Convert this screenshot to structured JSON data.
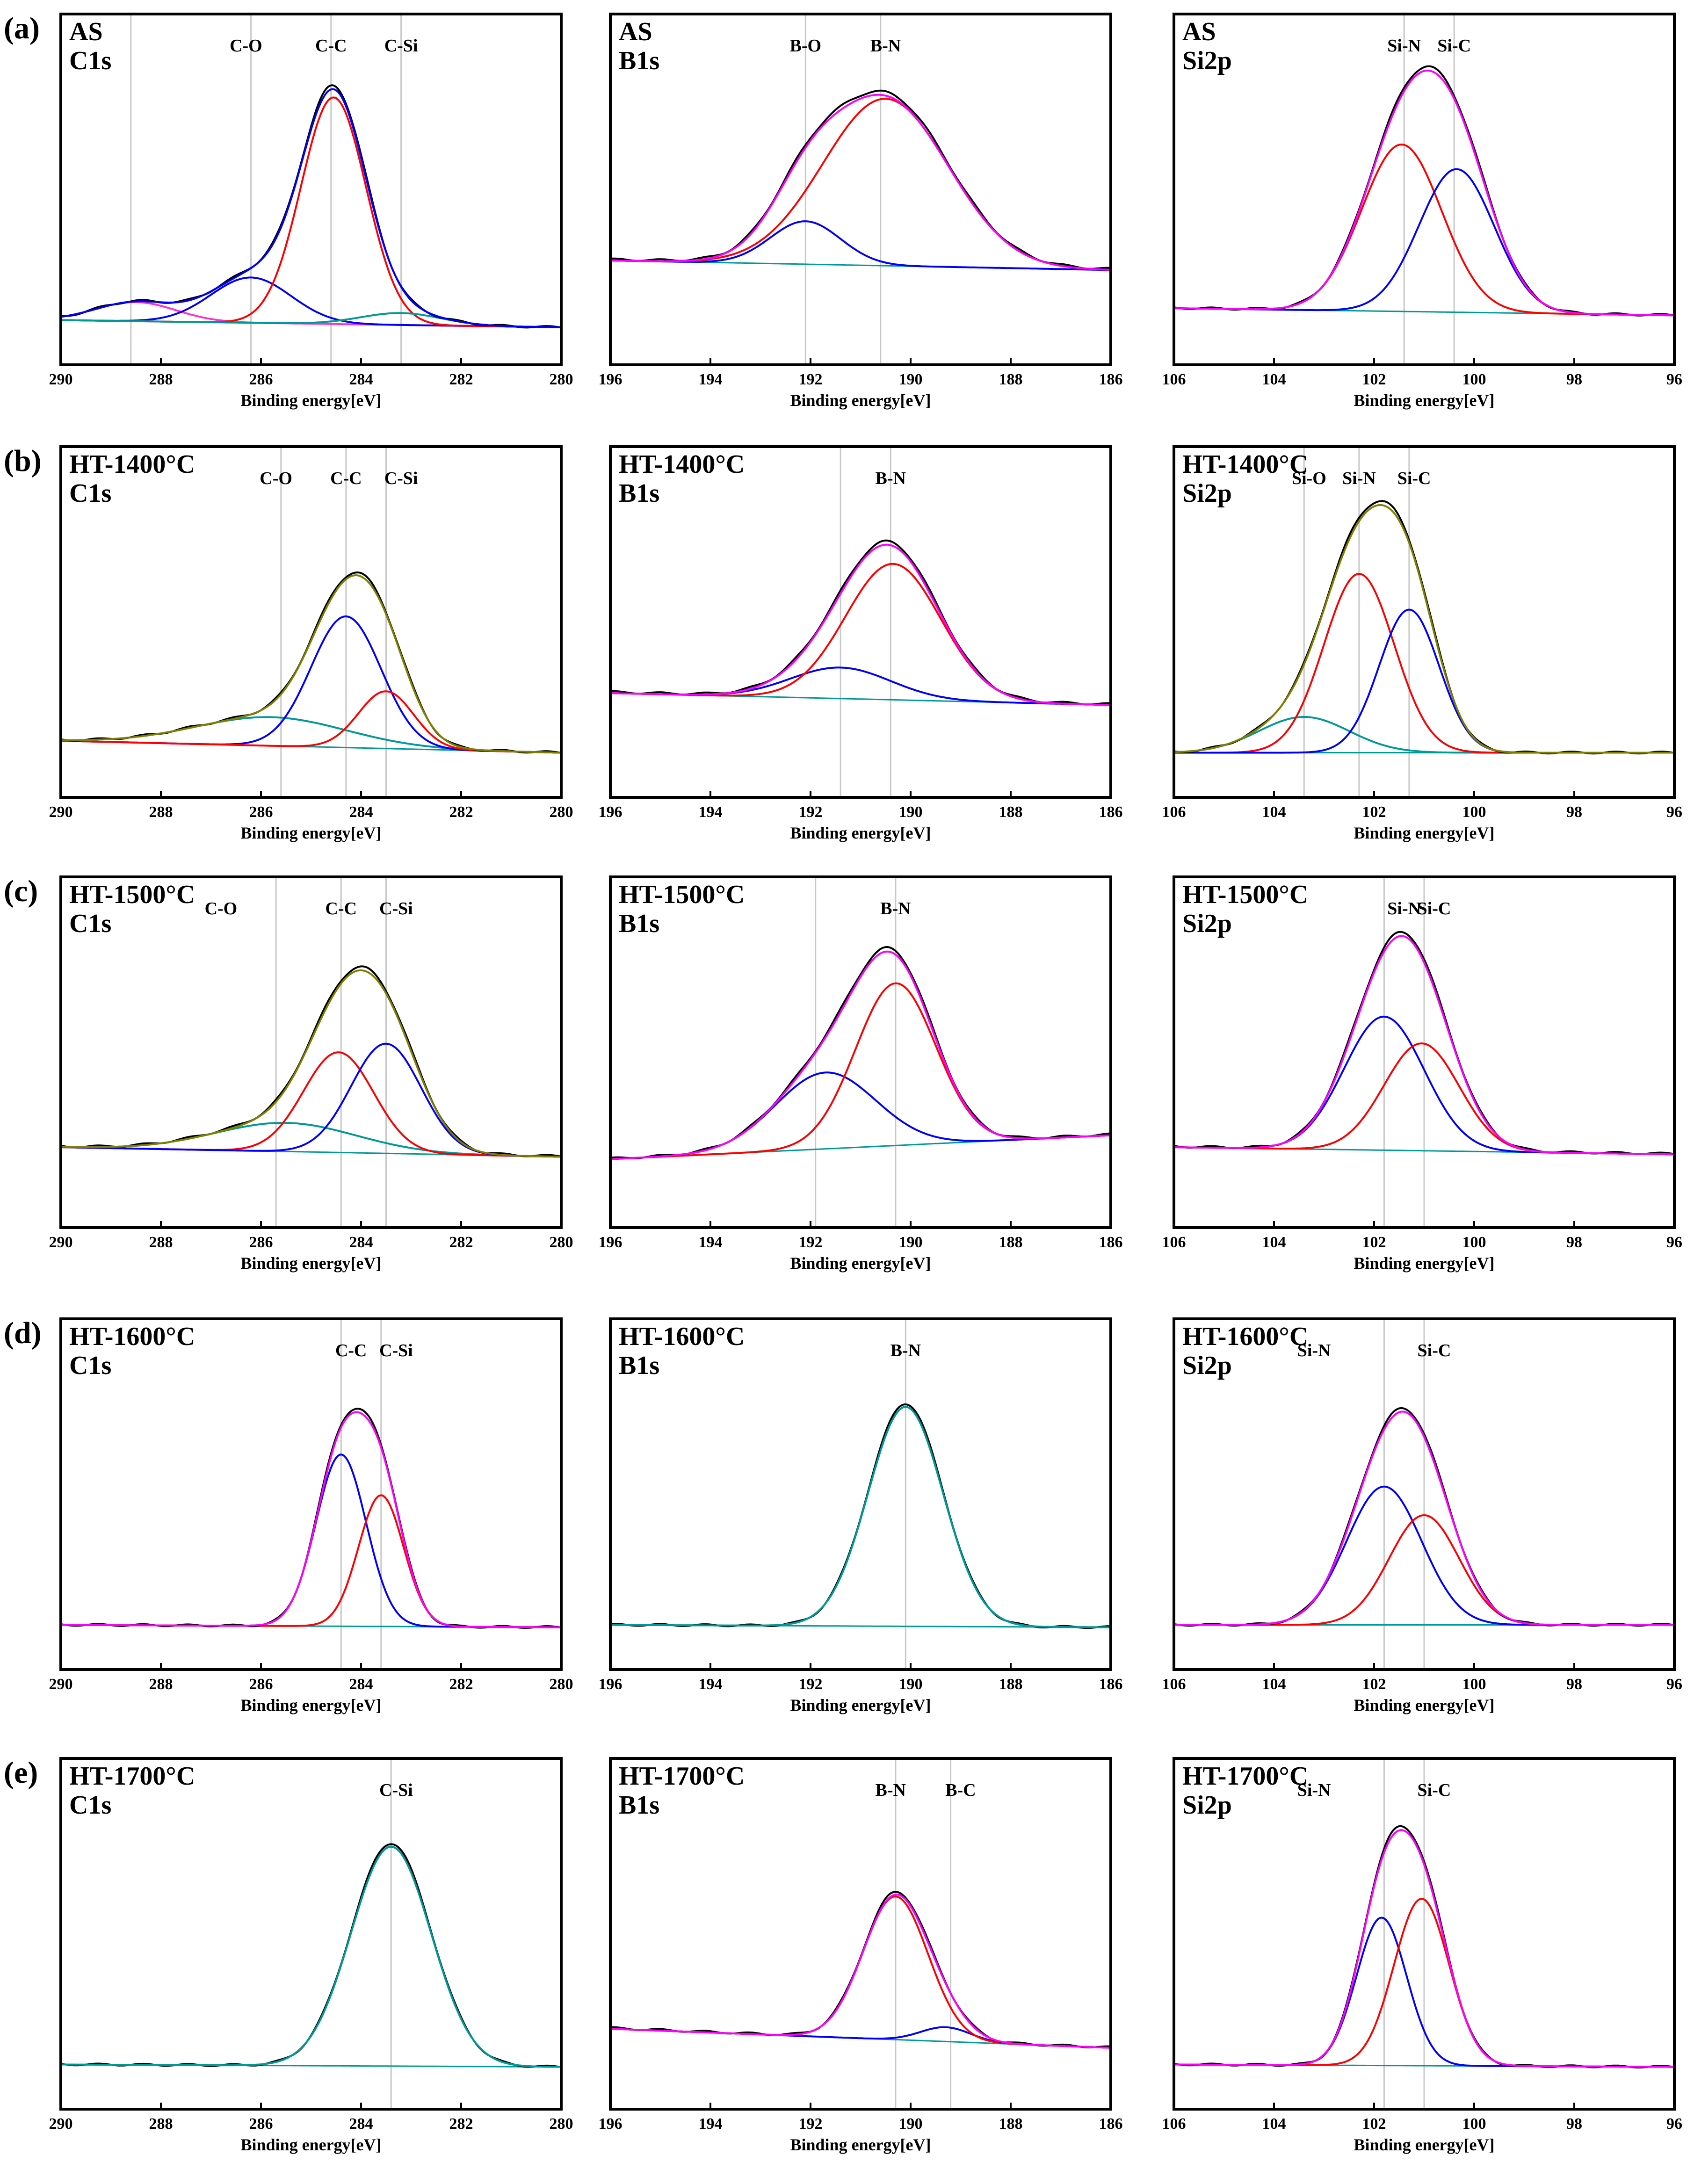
{
  "figure": {
    "row_labels": [
      "(a)",
      "(b)",
      "(c)",
      "(d)",
      "(e)"
    ],
    "xlabel": "Binding energy[eV]",
    "colors": {
      "envelope": "#ff00ff",
      "raw": "#000000",
      "comp_red": "#ff0000",
      "comp_blue": "#0000ff",
      "comp_teal": "#009999",
      "comp_magenta": "#ff33cc",
      "comp_olive": "#808000",
      "refline": "#c8c8c8"
    }
  },
  "chart_data": [
    {
      "type": "line",
      "id": "a-c1s",
      "row": 0,
      "col": 0,
      "sample": "AS",
      "orbital": "C1s",
      "xlim": [
        290,
        280
      ],
      "ticks": [
        290,
        288,
        286,
        284,
        282,
        280
      ],
      "xlabel": "Binding energy[eV]",
      "ymax": 1.0,
      "peaks": [
        {
          "label": "C-O",
          "x": 286.3
        },
        {
          "label": "C-C",
          "x": 284.6
        },
        {
          "label": "C-Si",
          "x": 283.2
        }
      ],
      "refs": [
        288.6,
        286.2,
        284.6,
        283.2
      ],
      "bg": [
        0.05,
        0.02
      ],
      "components": [
        {
          "color": "comp_magenta",
          "center": 288.5,
          "height": 0.08,
          "width": 0.8
        },
        {
          "color": "comp_blue",
          "center": 286.2,
          "height": 0.19,
          "width": 0.8
        },
        {
          "color": "comp_red",
          "center": 284.55,
          "height": 0.95,
          "width": 0.65
        },
        {
          "color": "comp_teal",
          "center": 283.2,
          "height": 0.05,
          "width": 0.8
        }
      ],
      "series": [
        {
          "name": "raw",
          "color": "raw"
        },
        {
          "name": "envelope",
          "color": "comp_blue"
        }
      ]
    },
    {
      "type": "line",
      "id": "a-b1s",
      "row": 0,
      "col": 1,
      "sample": "AS",
      "orbital": "B1s",
      "xlim": [
        196,
        186
      ],
      "ticks": [
        196,
        194,
        192,
        190,
        188,
        186
      ],
      "xlabel": "Binding energy[eV]",
      "ymax": 1.0,
      "peaks": [
        {
          "label": "B-O",
          "x": 192.1
        },
        {
          "label": "B-N",
          "x": 190.5
        }
      ],
      "refs": [
        192.1,
        190.6
      ],
      "bg": [
        0.3,
        0.26
      ],
      "components": [
        {
          "color": "comp_blue",
          "center": 192.1,
          "height": 0.18,
          "width": 0.7
        },
        {
          "color": "comp_red",
          "center": 190.5,
          "height": 0.7,
          "width": 1.25
        }
      ],
      "series": [
        {
          "name": "raw",
          "color": "raw"
        },
        {
          "name": "envelope",
          "color": "envelope"
        }
      ]
    },
    {
      "type": "line",
      "id": "a-si2p",
      "row": 0,
      "col": 2,
      "sample": "AS",
      "orbital": "Si2p",
      "xlim": [
        106,
        96
      ],
      "ticks": [
        106,
        104,
        102,
        100,
        98,
        96
      ],
      "xlabel": "Binding energy[eV]",
      "ymax": 1.0,
      "peaks": [
        {
          "label": "Si-N",
          "x": 101.4
        },
        {
          "label": "Si-C",
          "x": 100.4
        }
      ],
      "refs": [
        101.4,
        100.4
      ],
      "bg": [
        0.1,
        0.07
      ],
      "components": [
        {
          "color": "comp_red",
          "center": 101.45,
          "height": 0.7,
          "width": 0.8
        },
        {
          "color": "comp_blue",
          "center": 100.35,
          "height": 0.6,
          "width": 0.75
        }
      ],
      "series": [
        {
          "name": "raw",
          "color": "raw"
        },
        {
          "name": "envelope",
          "color": "envelope"
        }
      ]
    },
    {
      "type": "line",
      "id": "b-c1s",
      "row": 1,
      "col": 0,
      "sample": "HT-1400°C",
      "orbital": "C1s",
      "xlim": [
        290,
        280
      ],
      "ticks": [
        290,
        288,
        286,
        284,
        282,
        280
      ],
      "xlabel": "Binding energy[eV]",
      "ymax": 1.0,
      "peaks": [
        {
          "label": "C-O",
          "x": 285.7
        },
        {
          "label": "C-C",
          "x": 284.3
        },
        {
          "label": "C-Si",
          "x": 283.2
        }
      ],
      "refs": [
        285.6,
        284.3,
        283.5
      ],
      "bg": [
        0.1,
        0.05
      ],
      "components": [
        {
          "color": "comp_teal",
          "center": 285.8,
          "height": 0.12,
          "width": 1.5
        },
        {
          "color": "comp_blue",
          "center": 284.3,
          "height": 0.55,
          "width": 0.7
        },
        {
          "color": "comp_red",
          "center": 283.5,
          "height": 0.24,
          "width": 0.55
        }
      ],
      "series": [
        {
          "name": "raw",
          "color": "raw"
        },
        {
          "name": "envelope",
          "color": "comp_olive"
        }
      ]
    },
    {
      "type": "line",
      "id": "b-b1s",
      "row": 1,
      "col": 1,
      "sample": "HT-1400°C",
      "orbital": "B1s",
      "xlim": [
        196,
        186
      ],
      "ticks": [
        196,
        194,
        192,
        190,
        188,
        186
      ],
      "xlabel": "Binding energy[eV]",
      "ymax": 1.0,
      "peaks": [
        {
          "label": "B-N",
          "x": 190.4
        }
      ],
      "refs": [
        191.4,
        190.4
      ],
      "bg": [
        0.3,
        0.25
      ],
      "components": [
        {
          "color": "comp_blue",
          "center": 191.4,
          "height": 0.13,
          "width": 1.0
        },
        {
          "color": "comp_red",
          "center": 190.35,
          "height": 0.57,
          "width": 0.95
        }
      ],
      "series": [
        {
          "name": "raw",
          "color": "raw"
        },
        {
          "name": "envelope",
          "color": "envelope"
        }
      ]
    },
    {
      "type": "line",
      "id": "b-si2p",
      "row": 1,
      "col": 2,
      "sample": "HT-1400°C",
      "orbital": "Si2p",
      "xlim": [
        106,
        96
      ],
      "ticks": [
        106,
        104,
        102,
        100,
        98,
        96
      ],
      "xlabel": "Binding energy[eV]",
      "ymax": 1.0,
      "peaks": [
        {
          "label": "Si-O",
          "x": 103.3
        },
        {
          "label": "Si-N",
          "x": 102.3
        },
        {
          "label": "Si-C",
          "x": 101.2
        }
      ],
      "refs": [
        103.4,
        102.3,
        101.3
      ],
      "bg": [
        0.05,
        0.05
      ],
      "components": [
        {
          "color": "comp_teal",
          "center": 103.4,
          "height": 0.15,
          "width": 0.9
        },
        {
          "color": "comp_red",
          "center": 102.3,
          "height": 0.75,
          "width": 0.7
        },
        {
          "color": "comp_blue",
          "center": 101.3,
          "height": 0.6,
          "width": 0.6
        }
      ],
      "series": [
        {
          "name": "raw",
          "color": "raw"
        },
        {
          "name": "envelope",
          "color": "comp_olive"
        }
      ]
    },
    {
      "type": "line",
      "id": "c-c1s",
      "row": 2,
      "col": 0,
      "sample": "HT-1500°C",
      "orbital": "C1s",
      "xlim": [
        290,
        280
      ],
      "ticks": [
        290,
        288,
        286,
        284,
        282,
        280
      ],
      "xlabel": "Binding energy[eV]",
      "ymax": 1.0,
      "peaks": [
        {
          "label": "C-O",
          "x": 286.8
        },
        {
          "label": "C-C",
          "x": 284.4
        },
        {
          "label": "C-Si",
          "x": 283.3
        }
      ],
      "refs": [
        285.7,
        284.4,
        283.5
      ],
      "bg": [
        0.2,
        0.16
      ],
      "components": [
        {
          "color": "comp_teal",
          "center": 285.5,
          "height": 0.12,
          "width": 1.4
        },
        {
          "color": "comp_red",
          "center": 284.45,
          "height": 0.42,
          "width": 0.7
        },
        {
          "color": "comp_blue",
          "center": 283.5,
          "height": 0.46,
          "width": 0.7
        }
      ],
      "series": [
        {
          "name": "raw",
          "color": "raw"
        },
        {
          "name": "envelope",
          "color": "comp_olive"
        }
      ]
    },
    {
      "type": "line",
      "id": "c-b1s",
      "row": 2,
      "col": 1,
      "sample": "HT-1500°C",
      "orbital": "B1s",
      "xlim": [
        196,
        186
      ],
      "ticks": [
        196,
        194,
        192,
        190,
        188,
        186
      ],
      "xlabel": "Binding energy[eV]",
      "ymax": 1.0,
      "peaks": [
        {
          "label": "B-N",
          "x": 190.3
        }
      ],
      "refs": [
        191.9,
        190.3
      ],
      "bg": [
        0.15,
        0.25
      ],
      "components": [
        {
          "color": "comp_blue",
          "center": 191.7,
          "height": 0.32,
          "width": 1.0
        },
        {
          "color": "comp_red",
          "center": 190.3,
          "height": 0.68,
          "width": 0.8
        }
      ],
      "series": [
        {
          "name": "raw",
          "color": "raw"
        },
        {
          "name": "envelope",
          "color": "envelope"
        }
      ]
    },
    {
      "type": "line",
      "id": "c-si2p",
      "row": 2,
      "col": 2,
      "sample": "HT-1500°C",
      "orbital": "Si2p",
      "xlim": [
        106,
        96
      ],
      "ticks": [
        106,
        104,
        102,
        100,
        98,
        96
      ],
      "xlabel": "Binding energy[eV]",
      "ymax": 1.0,
      "peaks": [
        {
          "label": "Si-N",
          "x": 101.4
        },
        {
          "label": "Si-C",
          "x": 100.8
        }
      ],
      "refs": [
        101.8,
        101.0
      ],
      "bg": [
        0.2,
        0.17
      ],
      "components": [
        {
          "color": "comp_blue",
          "center": 101.8,
          "height": 0.56,
          "width": 0.8
        },
        {
          "color": "comp_red",
          "center": 101.05,
          "height": 0.45,
          "width": 0.75
        }
      ],
      "series": [
        {
          "name": "raw",
          "color": "raw"
        },
        {
          "name": "envelope",
          "color": "envelope"
        }
      ]
    },
    {
      "type": "line",
      "id": "d-c1s",
      "row": 3,
      "col": 0,
      "sample": "HT-1600°C",
      "orbital": "C1s",
      "xlim": [
        290,
        280
      ],
      "ticks": [
        290,
        288,
        286,
        284,
        282,
        280
      ],
      "xlabel": "Binding energy[eV]",
      "ymax": 1.0,
      "peaks": [
        {
          "label": "C-C",
          "x": 284.2
        },
        {
          "label": "C-Si",
          "x": 283.3
        }
      ],
      "refs": [
        284.4,
        283.6
      ],
      "bg": [
        0.05,
        0.04
      ],
      "components": [
        {
          "color": "comp_blue",
          "center": 284.4,
          "height": 0.72,
          "width": 0.5
        },
        {
          "color": "comp_red",
          "center": 283.6,
          "height": 0.55,
          "width": 0.45
        }
      ],
      "series": [
        {
          "name": "raw",
          "color": "raw"
        },
        {
          "name": "envelope",
          "color": "envelope"
        }
      ]
    },
    {
      "type": "line",
      "id": "d-b1s",
      "row": 3,
      "col": 1,
      "sample": "HT-1600°C",
      "orbital": "B1s",
      "xlim": [
        196,
        186
      ],
      "ticks": [
        196,
        194,
        192,
        190,
        188,
        186
      ],
      "xlabel": "Binding energy[eV]",
      "ymax": 1.0,
      "peaks": [
        {
          "label": "B-N",
          "x": 190.1
        }
      ],
      "refs": [
        190.1
      ],
      "bg": [
        0.05,
        0.04
      ],
      "components": [
        {
          "color": "comp_teal",
          "center": 190.1,
          "height": 0.92,
          "width": 0.75
        }
      ],
      "series": [
        {
          "name": "raw",
          "color": "raw"
        },
        {
          "name": "envelope",
          "color": "comp_teal"
        }
      ]
    },
    {
      "type": "line",
      "id": "d-si2p",
      "row": 3,
      "col": 2,
      "sample": "HT-1600°C",
      "orbital": "Si2p",
      "xlim": [
        106,
        96
      ],
      "ticks": [
        106,
        104,
        102,
        100,
        98,
        96
      ],
      "xlabel": "Binding energy[eV]",
      "ymax": 1.0,
      "peaks": [
        {
          "label": "Si-N",
          "x": 103.2
        },
        {
          "label": "Si-C",
          "x": 100.8
        }
      ],
      "refs": [
        101.8,
        101.0
      ],
      "bg": [
        0.05,
        0.05
      ],
      "components": [
        {
          "color": "comp_blue",
          "center": 101.8,
          "height": 0.58,
          "width": 0.75
        },
        {
          "color": "comp_red",
          "center": 101.0,
          "height": 0.46,
          "width": 0.7
        }
      ],
      "series": [
        {
          "name": "raw",
          "color": "raw"
        },
        {
          "name": "envelope",
          "color": "envelope"
        }
      ]
    },
    {
      "type": "line",
      "id": "e-c1s",
      "row": 4,
      "col": 0,
      "sample": "HT-1700°C",
      "orbital": "C1s",
      "xlim": [
        290,
        280
      ],
      "ticks": [
        290,
        288,
        286,
        284,
        282,
        280
      ],
      "xlabel": "Binding energy[eV]",
      "ymax": 1.0,
      "peaks": [
        {
          "label": "C-Si",
          "x": 283.3
        }
      ],
      "refs": [
        283.4
      ],
      "bg": [
        0.05,
        0.04
      ],
      "components": [
        {
          "color": "comp_teal",
          "center": 283.4,
          "height": 0.92,
          "width": 0.8
        }
      ],
      "series": [
        {
          "name": "raw",
          "color": "raw"
        },
        {
          "name": "envelope",
          "color": "comp_teal"
        }
      ]
    },
    {
      "type": "line",
      "id": "e-b1s",
      "row": 4,
      "col": 1,
      "sample": "HT-1700°C",
      "orbital": "B1s",
      "xlim": [
        196,
        186
      ],
      "ticks": [
        196,
        194,
        192,
        190,
        188,
        186
      ],
      "xlabel": "Binding energy[eV]",
      "ymax": 1.0,
      "peaks": [
        {
          "label": "B-N",
          "x": 190.4
        },
        {
          "label": "B-C",
          "x": 189.0
        }
      ],
      "refs": [
        190.3,
        189.2
      ],
      "bg": [
        0.2,
        0.12
      ],
      "components": [
        {
          "color": "comp_blue",
          "center": 189.3,
          "height": 0.06,
          "width": 0.5
        },
        {
          "color": "comp_red",
          "center": 190.3,
          "height": 0.6,
          "width": 0.65
        }
      ],
      "series": [
        {
          "name": "raw",
          "color": "raw"
        },
        {
          "name": "envelope",
          "color": "envelope"
        }
      ]
    },
    {
      "type": "line",
      "id": "e-si2p",
      "row": 4,
      "col": 2,
      "sample": "HT-1700°C",
      "orbital": "Si2p",
      "xlim": [
        106,
        96
      ],
      "ticks": [
        106,
        104,
        102,
        100,
        98,
        96
      ],
      "xlabel": "Binding energy[eV]",
      "ymax": 1.0,
      "peaks": [
        {
          "label": "Si-N",
          "x": 103.2
        },
        {
          "label": "Si-C",
          "x": 100.8
        }
      ],
      "refs": [
        101.8,
        101.0
      ],
      "bg": [
        0.05,
        0.04
      ],
      "components": [
        {
          "color": "comp_blue",
          "center": 101.85,
          "height": 0.62,
          "width": 0.5
        },
        {
          "color": "comp_red",
          "center": 101.05,
          "height": 0.7,
          "width": 0.55
        }
      ],
      "series": [
        {
          "name": "raw",
          "color": "raw"
        },
        {
          "name": "envelope",
          "color": "envelope"
        }
      ]
    }
  ]
}
